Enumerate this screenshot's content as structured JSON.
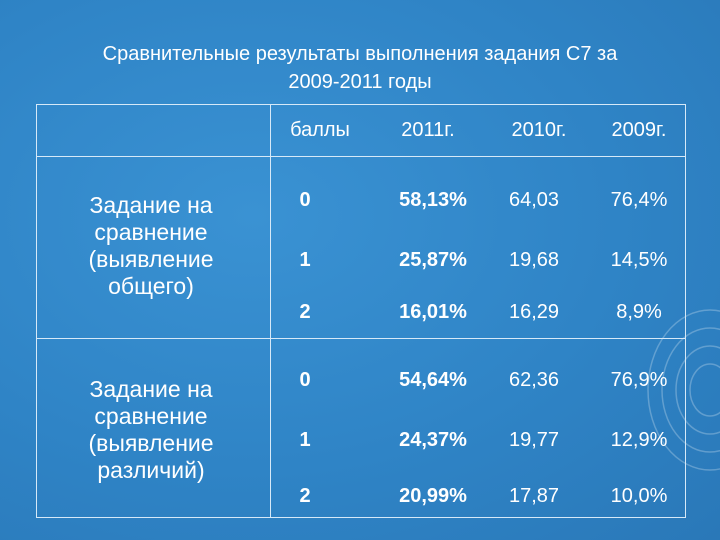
{
  "slide": {
    "title_line1": "Сравнительные результаты выполнения задания С7  за",
    "title_line2": "2009-2011 годы"
  },
  "table": {
    "headers": [
      "",
      "баллы",
      "2011г.",
      "2010г.",
      "2009г."
    ],
    "groups": [
      {
        "task": "Задание на сравнение (выявление общего)",
        "rows": [
          {
            "score": "0",
            "y2011": "58,13%",
            "y2010": "64,03",
            "y2009": "76,4%"
          },
          {
            "score": "1",
            "y2011": "25,87%",
            "y2010": "19,68",
            "y2009": "14,5%"
          },
          {
            "score": "2",
            "y2011": "16,01%",
            "y2010": "16,29",
            "y2009": "8,9%"
          }
        ]
      },
      {
        "task": "Задание на сравнение (выявление различий)",
        "rows": [
          {
            "score": "0",
            "y2011": "54,64%",
            "y2010": "62,36",
            "y2009": "76,9%"
          },
          {
            "score": "1",
            "y2011": "24,37%",
            "y2010": "19,77",
            "y2009": "12,9%"
          },
          {
            "score": "2",
            "y2011": "20,99%",
            "y2010": "17,87",
            "y2009": "10,0%"
          }
        ]
      }
    ]
  }
}
